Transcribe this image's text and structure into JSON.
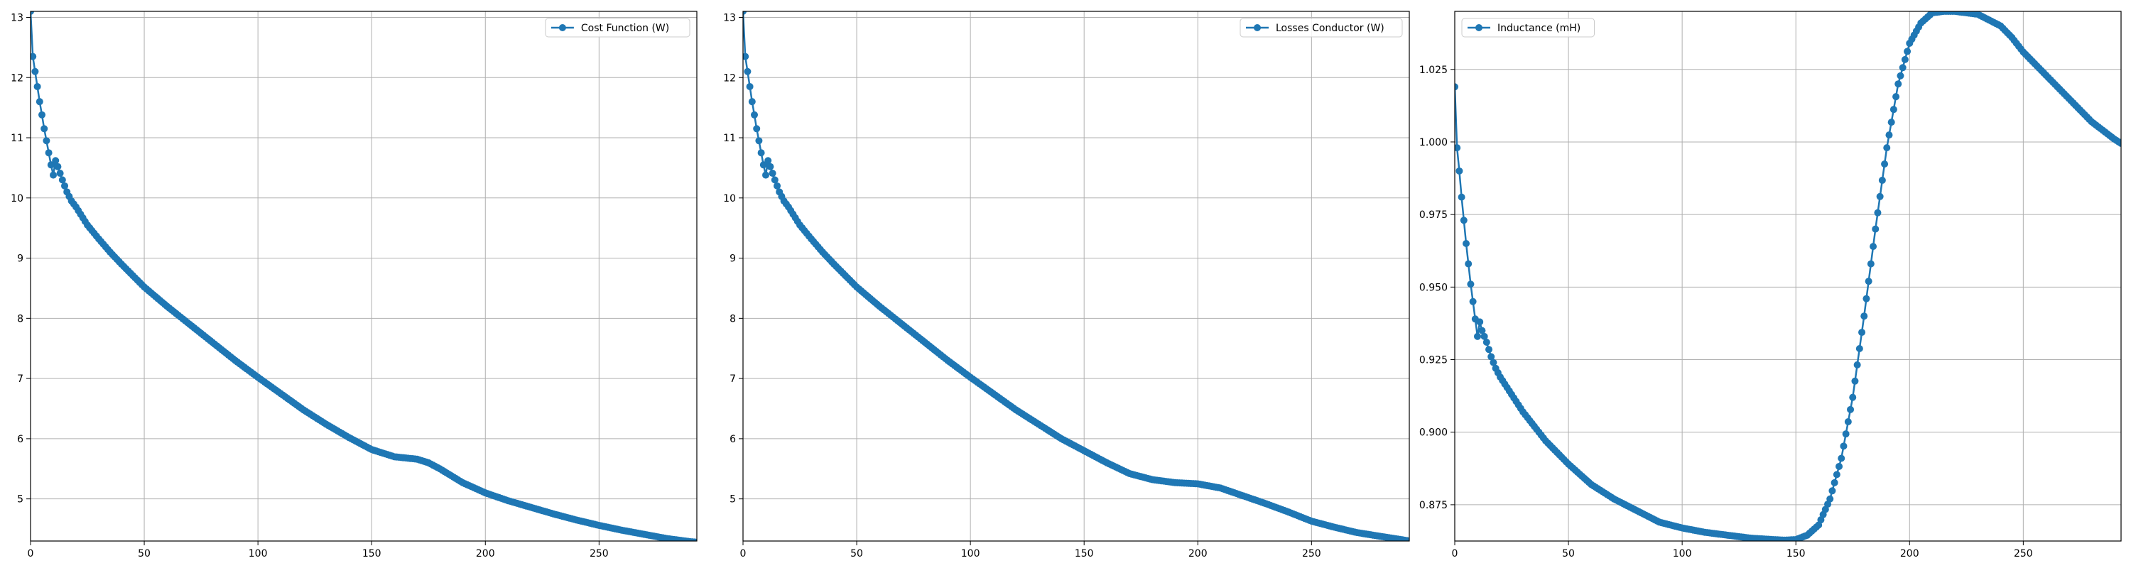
{
  "chart_data": [
    {
      "type": "line",
      "legend_position": "top-right",
      "grid": true,
      "color": "#1f77b4",
      "marker": "circle",
      "xlim": [
        0,
        293
      ],
      "ylim": [
        4.3,
        13.1
      ],
      "xticks": [
        0,
        50,
        100,
        150,
        200,
        250
      ],
      "yticks": [
        5,
        6,
        7,
        8,
        9,
        10,
        11,
        12,
        13
      ],
      "series": [
        {
          "name": "Cost Function (W)",
          "x": [
            0,
            1,
            2,
            3,
            4,
            5,
            6,
            7,
            8,
            9,
            10,
            11,
            12,
            14,
            16,
            18,
            20,
            25,
            30,
            35,
            40,
            50,
            60,
            70,
            80,
            90,
            100,
            110,
            120,
            130,
            140,
            150,
            160,
            170,
            175,
            180,
            190,
            200,
            210,
            220,
            230,
            240,
            250,
            260,
            270,
            280,
            290,
            293
          ],
          "y": [
            13.1,
            12.35,
            12.1,
            11.85,
            11.6,
            11.38,
            11.15,
            10.95,
            10.75,
            10.55,
            10.38,
            10.62,
            10.52,
            10.3,
            10.1,
            9.95,
            9.85,
            9.55,
            9.32,
            9.1,
            8.9,
            8.52,
            8.2,
            7.9,
            7.6,
            7.3,
            7.02,
            6.75,
            6.48,
            6.24,
            6.02,
            5.82,
            5.7,
            5.66,
            5.6,
            5.5,
            5.27,
            5.1,
            4.97,
            4.86,
            4.75,
            4.65,
            4.56,
            4.48,
            4.41,
            4.34,
            4.29,
            4.28
          ]
        }
      ]
    },
    {
      "type": "line",
      "legend_position": "top-right",
      "grid": true,
      "color": "#1f77b4",
      "marker": "circle",
      "xlim": [
        0,
        293
      ],
      "ylim": [
        4.3,
        13.1
      ],
      "xticks": [
        0,
        50,
        100,
        150,
        200,
        250
      ],
      "yticks": [
        5,
        6,
        7,
        8,
        9,
        10,
        11,
        12,
        13
      ],
      "series": [
        {
          "name": "Losses Conductor (W)",
          "x": [
            0,
            1,
            2,
            3,
            4,
            5,
            6,
            7,
            8,
            9,
            10,
            11,
            12,
            14,
            16,
            18,
            20,
            25,
            30,
            35,
            40,
            50,
            60,
            70,
            80,
            90,
            100,
            110,
            120,
            130,
            140,
            150,
            160,
            170,
            180,
            190,
            200,
            210,
            220,
            230,
            240,
            250,
            260,
            270,
            280,
            290,
            293
          ],
          "y": [
            13.1,
            12.35,
            12.1,
            11.85,
            11.6,
            11.38,
            11.15,
            10.95,
            10.75,
            10.55,
            10.38,
            10.62,
            10.52,
            10.3,
            10.1,
            9.95,
            9.85,
            9.55,
            9.32,
            9.1,
            8.9,
            8.52,
            8.2,
            7.9,
            7.6,
            7.3,
            7.02,
            6.75,
            6.48,
            6.24,
            6.0,
            5.8,
            5.6,
            5.42,
            5.32,
            5.27,
            5.25,
            5.18,
            5.05,
            4.92,
            4.78,
            4.63,
            4.53,
            4.44,
            4.38,
            4.32,
            4.3
          ]
        }
      ]
    },
    {
      "type": "line",
      "legend_position": "top-left",
      "grid": true,
      "color": "#1f77b4",
      "marker": "circle",
      "xlim": [
        0,
        293
      ],
      "ylim": [
        0.8625,
        1.045
      ],
      "xticks": [
        0,
        50,
        100,
        150,
        200,
        250
      ],
      "yticks": [
        0.875,
        0.9,
        0.925,
        0.95,
        0.975,
        1.0,
        1.025
      ],
      "ytick_labels": [
        "0.875",
        "0.900",
        "0.925",
        "0.950",
        "0.975",
        "1.000",
        "1.025"
      ],
      "series": [
        {
          "name": "Inductance (mH)",
          "x": [
            0,
            1,
            2,
            3,
            4,
            5,
            6,
            7,
            8,
            9,
            10,
            11,
            12,
            14,
            16,
            18,
            20,
            25,
            30,
            35,
            40,
            50,
            60,
            70,
            80,
            90,
            100,
            110,
            120,
            130,
            140,
            145,
            150,
            155,
            160,
            165,
            170,
            175,
            180,
            185,
            190,
            195,
            200,
            205,
            210,
            215,
            220,
            225,
            230,
            235,
            240,
            245,
            250,
            260,
            270,
            280,
            290,
            293
          ],
          "y": [
            1.019,
            0.998,
            0.99,
            0.981,
            0.973,
            0.965,
            0.958,
            0.951,
            0.945,
            0.939,
            0.933,
            0.938,
            0.935,
            0.931,
            0.926,
            0.922,
            0.919,
            0.913,
            0.907,
            0.902,
            0.897,
            0.889,
            0.882,
            0.877,
            0.873,
            0.869,
            0.867,
            0.8655,
            0.8645,
            0.8635,
            0.863,
            0.8628,
            0.863,
            0.8645,
            0.868,
            0.877,
            0.891,
            0.912,
            0.94,
            0.97,
            0.998,
            1.02,
            1.034,
            1.041,
            1.0445,
            1.045,
            1.045,
            1.0445,
            1.044,
            1.042,
            1.04,
            1.036,
            1.031,
            1.023,
            1.015,
            1.007,
            1.001,
            0.9995
          ]
        }
      ]
    }
  ]
}
